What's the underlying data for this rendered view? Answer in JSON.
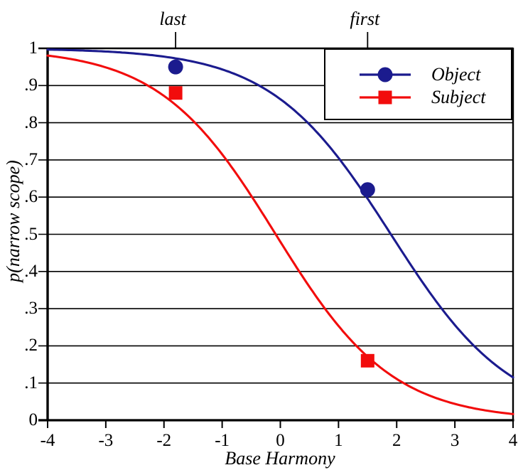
{
  "chart_data": {
    "type": "line",
    "title": "",
    "xlabel": "Base Harmony",
    "ylabel": "p(narrow scope)",
    "xlim": [
      -4,
      4
    ],
    "ylim": [
      0,
      1
    ],
    "grid": "horizontal-only",
    "x_ticks": [
      {
        "value": -4,
        "label": "-4"
      },
      {
        "value": -3,
        "label": "-3"
      },
      {
        "value": -2,
        "label": "-2"
      },
      {
        "value": -1,
        "label": "-1"
      },
      {
        "value": 0,
        "label": "0"
      },
      {
        "value": 1,
        "label": "1"
      },
      {
        "value": 2,
        "label": "2"
      },
      {
        "value": 3,
        "label": "3"
      },
      {
        "value": 4,
        "label": "4"
      }
    ],
    "y_ticks": [
      {
        "value": 1.0,
        "label": "1"
      },
      {
        "value": 0.9,
        "label": ".9"
      },
      {
        "value": 0.8,
        "label": ".8"
      },
      {
        "value": 0.7,
        "label": ".7"
      },
      {
        "value": 0.6,
        "label": ".6"
      },
      {
        "value": 0.5,
        "label": ".5"
      },
      {
        "value": 0.4,
        "label": ".4"
      },
      {
        "value": 0.3,
        "label": ".3"
      },
      {
        "value": 0.2,
        "label": ".2"
      },
      {
        "value": 0.1,
        "label": ".1"
      },
      {
        "value": 0.0,
        "label": "0"
      }
    ],
    "series": [
      {
        "name": "Object",
        "color": "#1b1b8e",
        "marker": "circle",
        "points": [
          [
            -1.8,
            0.95
          ],
          [
            1.5,
            0.62
          ]
        ],
        "curve": {
          "type": "logistic",
          "x0": 1.9,
          "k": 0.97
        }
      },
      {
        "name": "Subject",
        "color": "#f20c0c",
        "marker": "square",
        "points": [
          [
            -1.8,
            0.88
          ],
          [
            1.5,
            0.16
          ]
        ],
        "curve": {
          "type": "logistic",
          "x0": -0.08,
          "k": 1.0
        }
      }
    ],
    "annotations": [
      {
        "label": "last",
        "x": -1.8
      },
      {
        "label": "first",
        "x": 1.5
      }
    ],
    "legend": {
      "position": "top-right",
      "entries": [
        {
          "label": "Object",
          "color": "#1b1b8e",
          "marker": "circle"
        },
        {
          "label": "Subject",
          "color": "#f20c0c",
          "marker": "square"
        }
      ]
    }
  },
  "colors": {
    "axis": "#000000",
    "text": "#000000",
    "background": "#ffffff",
    "object_blue": "#1b1b8e",
    "subject_red": "#f20c0c"
  }
}
